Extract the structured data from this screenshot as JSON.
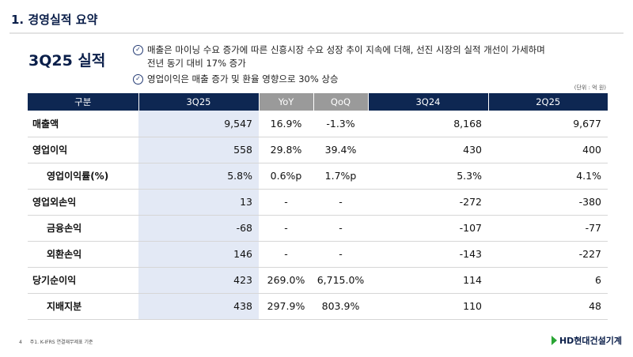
{
  "section_title": "1. 경영실적 요약",
  "headline": "3Q25 실적",
  "bullets": [
    {
      "icon": "check-circle-icon",
      "lines": [
        "매출은 마이닝 수요 증가에 따른 신흥시장 수요 성장 추이 지속에 더해, 선진 시장의 실적 개선이 가세하며",
        "전년 동기 대비 17% 증가"
      ]
    },
    {
      "icon": "check-circle-icon",
      "lines": [
        "영업이익은 매출 증가 및 환율 영향으로 30% 상승"
      ]
    }
  ],
  "unit": "(단위 : 억 원)",
  "table": {
    "headers": [
      "구분",
      "3Q25",
      "YoY",
      "QoQ",
      "3Q24",
      "2Q25"
    ],
    "rows": [
      [
        "매출액",
        "9,547",
        "16.9%",
        "-1.3%",
        "8,168",
        "9,677"
      ],
      [
        "영업이익",
        "558",
        "29.8%",
        "39.4%",
        "430",
        "400"
      ],
      [
        "영업이익률(%)",
        "5.8%",
        "0.6%p",
        "1.7%p",
        "5.3%",
        "4.1%"
      ],
      [
        "영업외손익",
        "13",
        "-",
        "-",
        "-272",
        "-380"
      ],
      [
        "금융손익",
        "-68",
        "-",
        "-",
        "-107",
        "-77"
      ],
      [
        "외환손익",
        "146",
        "-",
        "-",
        "-143",
        "-227"
      ],
      [
        "당기순이익",
        "423",
        "269.0%",
        "6,715.0%",
        "114",
        "6"
      ],
      [
        "지배지분",
        "438",
        "297.9%",
        "803.9%",
        "110",
        "48"
      ]
    ]
  },
  "footer": {
    "page": "4",
    "note": "주1. K-IFRS 연결재무제표 기준"
  },
  "logo": "HD현대건설기계",
  "colors": {
    "header": "#0e2752",
    "highlight": "#e3e9f5",
    "gray_header": "#9a9a9a",
    "logo_green": "#2aa534"
  }
}
